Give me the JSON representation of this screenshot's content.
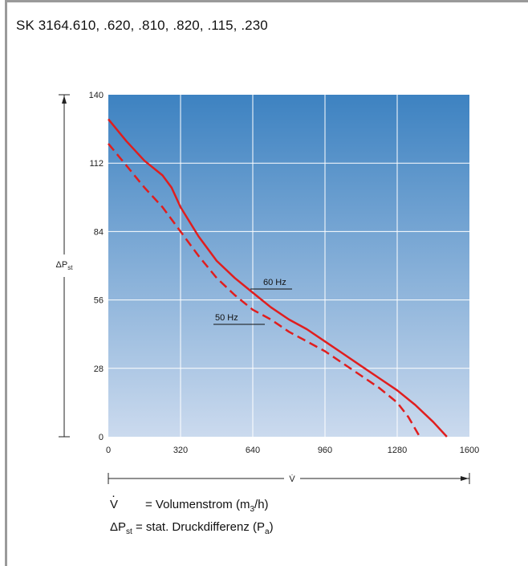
{
  "header": {
    "title": "SK 3164.610, .620, .810, .820, .115, .230"
  },
  "colors": {
    "plot_top": "#3d82c1",
    "plot_bottom": "#cbdaee",
    "curve": "#e01e1e",
    "grid": "#ffffff",
    "axis": "#222222"
  },
  "chart_data": {
    "type": "line",
    "title": "",
    "xlabel": "V̇",
    "ylabel": "ΔPst",
    "xlim": [
      0,
      1600
    ],
    "ylim": [
      0,
      140
    ],
    "x_ticks": [
      0,
      320,
      640,
      960,
      1280,
      1600
    ],
    "y_ticks": [
      0,
      28,
      56,
      84,
      112,
      140
    ],
    "grid": true,
    "series": [
      {
        "name": "60 Hz",
        "style": "solid",
        "points": [
          [
            0,
            130
          ],
          [
            80,
            121
          ],
          [
            160,
            113
          ],
          [
            240,
            107
          ],
          [
            280,
            102
          ],
          [
            320,
            94
          ],
          [
            400,
            82
          ],
          [
            480,
            72
          ],
          [
            560,
            65
          ],
          [
            640,
            59
          ],
          [
            720,
            53
          ],
          [
            800,
            48
          ],
          [
            880,
            44
          ],
          [
            960,
            39
          ],
          [
            1040,
            34
          ],
          [
            1120,
            29
          ],
          [
            1200,
            24
          ],
          [
            1280,
            19
          ],
          [
            1360,
            13
          ],
          [
            1440,
            6
          ],
          [
            1500,
            0
          ]
        ]
      },
      {
        "name": "50 Hz",
        "style": "dashed",
        "points": [
          [
            0,
            120
          ],
          [
            80,
            111
          ],
          [
            160,
            102
          ],
          [
            240,
            94
          ],
          [
            320,
            84
          ],
          [
            400,
            74
          ],
          [
            480,
            65
          ],
          [
            560,
            58
          ],
          [
            640,
            52
          ],
          [
            720,
            48
          ],
          [
            800,
            43
          ],
          [
            880,
            39
          ],
          [
            960,
            35
          ],
          [
            1040,
            30
          ],
          [
            1120,
            25
          ],
          [
            1200,
            20
          ],
          [
            1280,
            14
          ],
          [
            1330,
            8
          ],
          [
            1380,
            0
          ]
        ]
      }
    ]
  },
  "legend": {
    "v_symbol": "V",
    "v_desc": "= Volumenstrom (m",
    "v_unit": "3",
    "v_end": "/h)",
    "p_symbol": "ΔP",
    "p_sub": "st",
    "p_desc": "= stat. Druckdifferenz (P",
    "p_unit_sub": "a",
    "p_end": ")"
  }
}
